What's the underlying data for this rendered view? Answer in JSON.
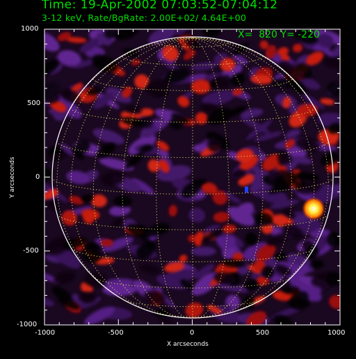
{
  "header": {
    "title": "Time: 19-Apr-2002 07:03:52-07:04:12",
    "subtitle": "3-12 keV, Rate/BgRate:  2.00E+02/  4.64E+00"
  },
  "readout": {
    "text": "X=  820 Y= -220"
  },
  "plot": {
    "xlabel": "X arcseconds",
    "ylabel": "Y arcseconds",
    "x_range": [
      -1000,
      1000
    ],
    "y_range": [
      -1000,
      1000
    ],
    "x_ticks": [
      "-1000",
      "-500",
      "0",
      "500",
      "1000"
    ],
    "y_ticks": [
      "1000",
      "500",
      "0",
      "-500",
      "-1000"
    ],
    "limb_color": "#ffffff",
    "grid_color": "#e8e86a",
    "label_color": "#00e000",
    "source": {
      "x": 820,
      "y": -220
    }
  }
}
